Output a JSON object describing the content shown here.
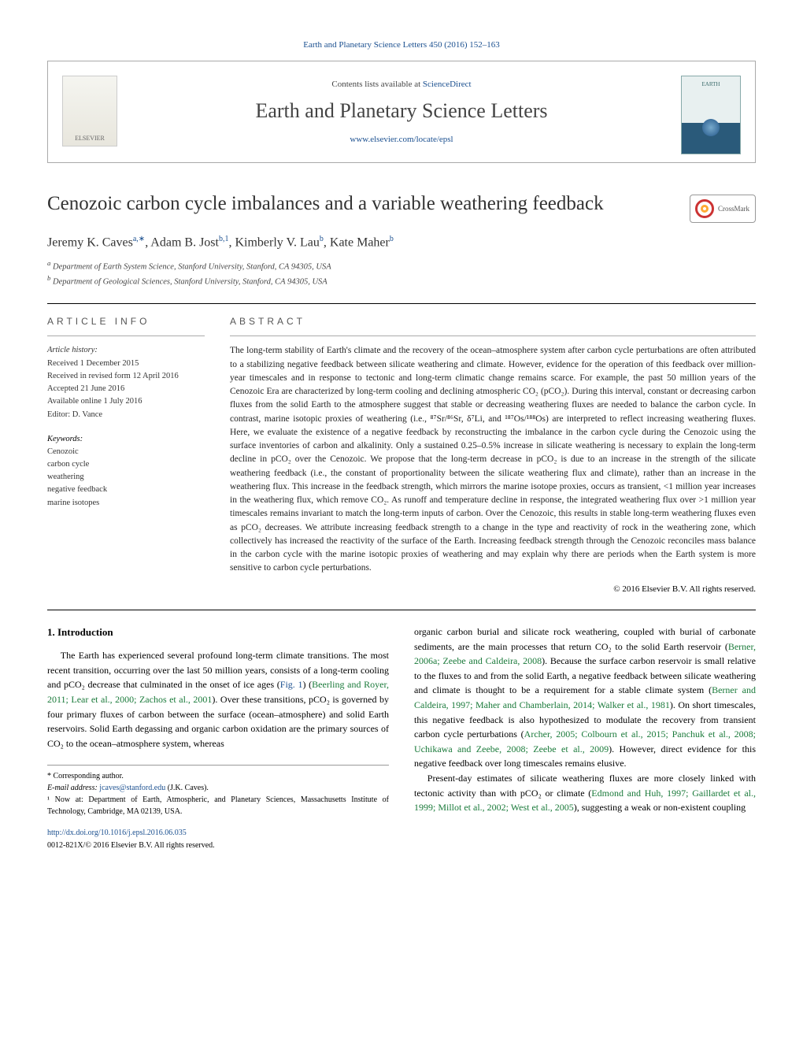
{
  "header": {
    "citation": "Earth and Planetary Science Letters 450 (2016) 152–163",
    "contents_prefix": "Contents lists available at ",
    "contents_link": "ScienceDirect",
    "journal_name": "Earth and Planetary Science Letters",
    "journal_url": "www.elsevier.com/locate/epsl",
    "publisher_logo_label": "ELSEVIER",
    "cover_label": "EARTH"
  },
  "article": {
    "title": "Cenozoic carbon cycle imbalances and a variable weathering feedback",
    "crossmark_label": "CrossMark",
    "authors_html": "Jeremy K. Caves",
    "author_sup1": "a,∗",
    "author2": ", Adam B. Jost",
    "author_sup2": "b,1",
    "author3": ", Kimberly V. Lau",
    "author_sup3": "b",
    "author4": ", Kate Maher",
    "author_sup4": "b",
    "affiliations": {
      "a": "Department of Earth System Science, Stanford University, Stanford, CA 94305, USA",
      "b": "Department of Geological Sciences, Stanford University, Stanford, CA 94305, USA"
    }
  },
  "info": {
    "section_heading": "ARTICLE INFO",
    "history_head": "Article history:",
    "received": "Received 1 December 2015",
    "revised": "Received in revised form 12 April 2016",
    "accepted": "Accepted 21 June 2016",
    "online": "Available online 1 July 2016",
    "editor": "Editor: D. Vance",
    "keywords_head": "Keywords:",
    "keywords": [
      "Cenozoic",
      "carbon cycle",
      "weathering",
      "negative feedback",
      "marine isotopes"
    ]
  },
  "abstract": {
    "section_heading": "ABSTRACT",
    "text": "The long-term stability of Earth's climate and the recovery of the ocean–atmosphere system after carbon cycle perturbations are often attributed to a stabilizing negative feedback between silicate weathering and climate. However, evidence for the operation of this feedback over million-year timescales and in response to tectonic and long-term climatic change remains scarce. For example, the past 50 million years of the Cenozoic Era are characterized by long-term cooling and declining atmospheric CO₂ (pCO₂). During this interval, constant or decreasing carbon fluxes from the solid Earth to the atmosphere suggest that stable or decreasing weathering fluxes are needed to balance the carbon cycle. In contrast, marine isotopic proxies of weathering (i.e., ⁸⁷Sr/⁸⁶Sr, δ⁷Li, and ¹⁸⁷Os/¹⁸⁸Os) are interpreted to reflect increasing weathering fluxes. Here, we evaluate the existence of a negative feedback by reconstructing the imbalance in the carbon cycle during the Cenozoic using the surface inventories of carbon and alkalinity. Only a sustained 0.25–0.5% increase in silicate weathering is necessary to explain the long-term decline in pCO₂ over the Cenozoic. We propose that the long-term decrease in pCO₂ is due to an increase in the strength of the silicate weathering feedback (i.e., the constant of proportionality between the silicate weathering flux and climate), rather than an increase in the weathering flux. This increase in the feedback strength, which mirrors the marine isotope proxies, occurs as transient, <1 million year increases in the weathering flux, which remove CO₂. As runoff and temperature decline in response, the integrated weathering flux over >1 million year timescales remains invariant to match the long-term inputs of carbon. Over the Cenozoic, this results in stable long-term weathering fluxes even as pCO₂ decreases. We attribute increasing feedback strength to a change in the type and reactivity of rock in the weathering zone, which collectively has increased the reactivity of the surface of the Earth. Increasing feedback strength through the Cenozoic reconciles mass balance in the carbon cycle with the marine isotopic proxies of weathering and may explain why there are periods when the Earth system is more sensitive to carbon cycle perturbations.",
    "copyright": "© 2016 Elsevier B.V. All rights reserved."
  },
  "body": {
    "section_number": "1.",
    "section_title": "Introduction",
    "col1": "The Earth has experienced several profound long-term climate transitions. The most recent transition, occurring over the last 50 million years, consists of a long-term cooling and pCO₂ decrease that culminated in the onset of ice ages (Fig. 1) (Beerling and Royer, 2011; Lear et al., 2000; Zachos et al., 2001). Over these transitions, pCO₂ is governed by four primary fluxes of carbon between the surface (ocean–atmosphere) and solid Earth reservoirs. Solid Earth degassing and organic carbon oxidation are the primary sources of CO₂ to the ocean–atmosphere system, whereas",
    "col2a": "organic carbon burial and silicate rock weathering, coupled with burial of carbonate sediments, are the main processes that return CO₂ to the solid Earth reservoir (Berner, 2006a; Zeebe and Caldeira, 2008). Because the surface carbon reservoir is small relative to the fluxes to and from the solid Earth, a negative feedback between silicate weathering and climate is thought to be a requirement for a stable climate system (Berner and Caldeira, 1997; Maher and Chamberlain, 2014; Walker et al., 1981). On short timescales, this negative feedback is also hypothesized to modulate the recovery from transient carbon cycle perturbations (Archer, 2005; Colbourn et al., 2015; Panchuk et al., 2008; Uchikawa and Zeebe, 2008; Zeebe et al., 2009). However, direct evidence for this negative feedback over long timescales remains elusive.",
    "col2b": "Present-day estimates of silicate weathering fluxes are more closely linked with tectonic activity than with pCO₂ or climate (Edmond and Huh, 1997; Gaillardet et al., 1999; Millot et al., 2002; West et al., 2005), suggesting a weak or non-existent coupling"
  },
  "footnotes": {
    "corr": "* Corresponding author.",
    "email_label": "E-mail address: ",
    "email": "jcaves@stanford.edu",
    "email_name": " (J.K. Caves).",
    "note1": "¹ Now at: Department of Earth, Atmospheric, and Planetary Sciences, Massachusetts Institute of Technology, Cambridge, MA 02139, USA."
  },
  "doi": {
    "url": "http://dx.doi.org/10.1016/j.epsl.2016.06.035",
    "issn": "0012-821X/© 2016 Elsevier B.V. All rights reserved."
  },
  "colors": {
    "link": "#1a4f8f",
    "ref": "#1a7a3a",
    "text": "#000000",
    "rule": "#000000"
  },
  "typography": {
    "title_fontsize": 25,
    "journal_fontsize": 26,
    "body_fontsize": 12,
    "abstract_fontsize": 11.5,
    "info_fontsize": 10.5
  }
}
